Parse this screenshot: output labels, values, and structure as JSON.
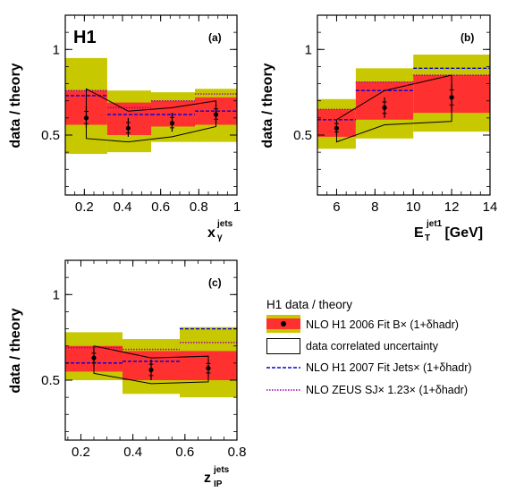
{
  "experiment_label": "H1",
  "colors": {
    "outer_band": "#c8c800",
    "inner_band": "#ff3030",
    "h1_2007_line": "#0000dd",
    "zeus_line": "#a000a0",
    "points": "#000000",
    "correlated_box": "#000000"
  },
  "legend": {
    "title": "H1 data / theory",
    "entries": [
      {
        "key": "nlo_h1_2006",
        "text": "NLO H1 2006 Fit B× (1+δhadr)",
        "symbol": "band-with-point"
      },
      {
        "key": "correlated",
        "text": "data correlated uncertainty",
        "symbol": "open-box"
      },
      {
        "key": "h1_2007",
        "text": "NLO H1 2007 Fit Jets× (1+δhadr)",
        "symbol": "dashed-blue"
      },
      {
        "key": "zeus",
        "text": "NLO ZEUS  SJ× 1.23× (1+δhadr)",
        "symbol": "dotted-purple"
      }
    ]
  },
  "chart_data": [
    {
      "type": "scatter",
      "panel_label": "(a)",
      "ylabel": "data / theory",
      "xlabel": "x",
      "xlabel_sub": "γ",
      "xlabel_sup": "jets",
      "xlim": [
        0.1,
        1.0
      ],
      "ylim": [
        0.15,
        1.2
      ],
      "xticks": [
        0.2,
        0.4,
        0.6,
        0.8,
        1.0
      ],
      "xtick_labels": [
        "0.2",
        "0.4",
        "0.6",
        "0.8",
        "1"
      ],
      "yticks": [
        0.5,
        1.0
      ],
      "ytick_labels": [
        "0.5",
        "1"
      ],
      "bins": [
        {
          "xlo": 0.1,
          "xhi": 0.32,
          "x": 0.21,
          "y": 0.6,
          "err_lo": 0.06,
          "err_hi": 0.07,
          "band_outer": [
            0.39,
            0.95
          ],
          "band_inner": [
            0.56,
            0.76
          ],
          "h1_2007": 0.73,
          "zeus": 0.76,
          "corr": [
            0.48,
            0.77
          ]
        },
        {
          "xlo": 0.32,
          "xhi": 0.55,
          "x": 0.43,
          "y": 0.54,
          "err_lo": 0.05,
          "err_hi": 0.06,
          "band_outer": [
            0.4,
            0.76
          ],
          "band_inner": [
            0.5,
            0.69
          ],
          "h1_2007": 0.62,
          "zeus": 0.66,
          "corr": [
            0.46,
            0.64
          ]
        },
        {
          "xlo": 0.55,
          "xhi": 0.78,
          "x": 0.66,
          "y": 0.57,
          "err_lo": 0.05,
          "err_hi": 0.06,
          "band_outer": [
            0.46,
            0.75
          ],
          "band_inner": [
            0.55,
            0.7
          ],
          "h1_2007": 0.62,
          "zeus": 0.7,
          "corr": [
            0.49,
            0.66
          ]
        },
        {
          "xlo": 0.78,
          "xhi": 1.0,
          "x": 0.89,
          "y": 0.62,
          "err_lo": 0.05,
          "err_hi": 0.06,
          "band_outer": [
            0.46,
            0.77
          ],
          "band_inner": [
            0.56,
            0.72
          ],
          "h1_2007": 0.64,
          "zeus": 0.74,
          "corr": [
            0.55,
            0.7
          ]
        }
      ]
    },
    {
      "type": "scatter",
      "panel_label": "(b)",
      "ylabel": "data / theory",
      "xlabel": "E",
      "xlabel_sub": "T",
      "xlabel_sup": "jet1",
      "xlabel_suffix": " [GeV]",
      "xlim": [
        5,
        14
      ],
      "ylim": [
        0.15,
        1.2
      ],
      "xticks": [
        6,
        8,
        10,
        12,
        14
      ],
      "xtick_labels": [
        "6",
        "8",
        "10",
        "12",
        "14"
      ],
      "yticks": [
        0.5,
        1.0
      ],
      "ytick_labels": [
        "0.5",
        "1"
      ],
      "bins": [
        {
          "xlo": 5,
          "xhi": 7,
          "x": 6.0,
          "y": 0.54,
          "err_lo": 0.04,
          "err_hi": 0.05,
          "band_outer": [
            0.42,
            0.71
          ],
          "band_inner": [
            0.49,
            0.65
          ],
          "h1_2007": 0.59,
          "zeus": 0.65,
          "corr": [
            0.46,
            0.59
          ]
        },
        {
          "xlo": 7,
          "xhi": 10,
          "x": 8.5,
          "y": 0.66,
          "err_lo": 0.06,
          "err_hi": 0.06,
          "band_outer": [
            0.48,
            0.89
          ],
          "band_inner": [
            0.59,
            0.81
          ],
          "h1_2007": 0.76,
          "zeus": 0.81,
          "corr": [
            0.56,
            0.76
          ]
        },
        {
          "xlo": 10,
          "xhi": 14,
          "x": 12.0,
          "y": 0.72,
          "err_lo": 0.08,
          "err_hi": 0.08,
          "band_outer": [
            0.52,
            0.97
          ],
          "band_inner": [
            0.63,
            0.85
          ],
          "h1_2007": 0.89,
          "zeus": 0.85,
          "corr": [
            0.58,
            0.85
          ]
        }
      ]
    },
    {
      "type": "scatter",
      "panel_label": "(c)",
      "ylabel": "data / theory",
      "xlabel": "z",
      "xlabel_sub": "IP",
      "xlabel_sup": "jets",
      "xlim": [
        0.14,
        0.8
      ],
      "ylim": [
        0.15,
        1.2
      ],
      "xticks": [
        0.2,
        0.4,
        0.6,
        0.8
      ],
      "xtick_labels": [
        "0.2",
        "0.4",
        "0.6",
        "0.8"
      ],
      "yticks": [
        0.5,
        1.0
      ],
      "ytick_labels": [
        "0.5",
        "1"
      ],
      "bins": [
        {
          "xlo": 0.14,
          "xhi": 0.36,
          "x": 0.25,
          "y": 0.63,
          "err_lo": 0.05,
          "err_hi": 0.05,
          "band_outer": [
            0.5,
            0.78
          ],
          "band_inner": [
            0.55,
            0.7
          ],
          "h1_2007": 0.6,
          "zeus": 0.69,
          "corr": [
            0.54,
            0.7
          ]
        },
        {
          "xlo": 0.36,
          "xhi": 0.58,
          "x": 0.47,
          "y": 0.56,
          "err_lo": 0.06,
          "err_hi": 0.06,
          "band_outer": [
            0.42,
            0.74
          ],
          "band_inner": [
            0.5,
            0.67
          ],
          "h1_2007": 0.61,
          "zeus": 0.68,
          "corr": [
            0.48,
            0.63
          ]
        },
        {
          "xlo": 0.58,
          "xhi": 0.8,
          "x": 0.69,
          "y": 0.57,
          "err_lo": 0.05,
          "err_hi": 0.05,
          "band_outer": [
            0.4,
            0.81
          ],
          "band_inner": [
            0.5,
            0.67
          ],
          "h1_2007": 0.8,
          "zeus": 0.72,
          "corr": [
            0.49,
            0.64
          ]
        }
      ]
    }
  ]
}
